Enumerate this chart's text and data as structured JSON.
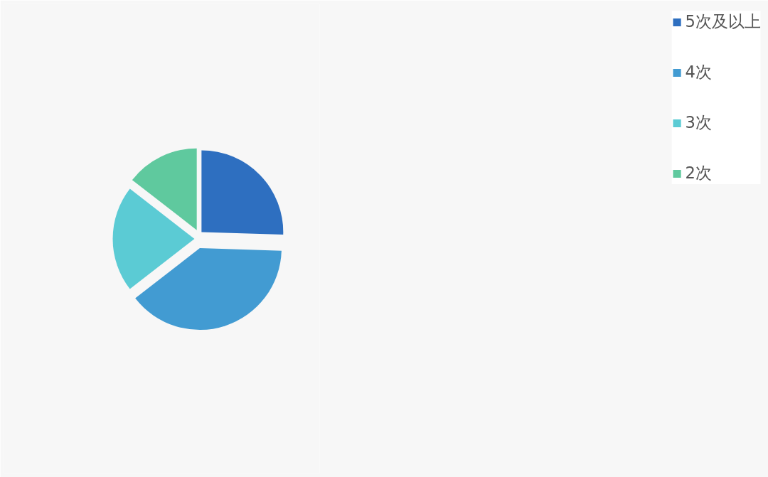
{
  "chart_data": {
    "type": "pie",
    "categories": [
      "5次及以上",
      "4次",
      "3次",
      "2次"
    ],
    "values": [
      25.5,
      39,
      21,
      14.5
    ],
    "colors": [
      "#2e6fc0",
      "#429bd2",
      "#5bcbd4",
      "#5fc99e"
    ],
    "legend": "right"
  }
}
